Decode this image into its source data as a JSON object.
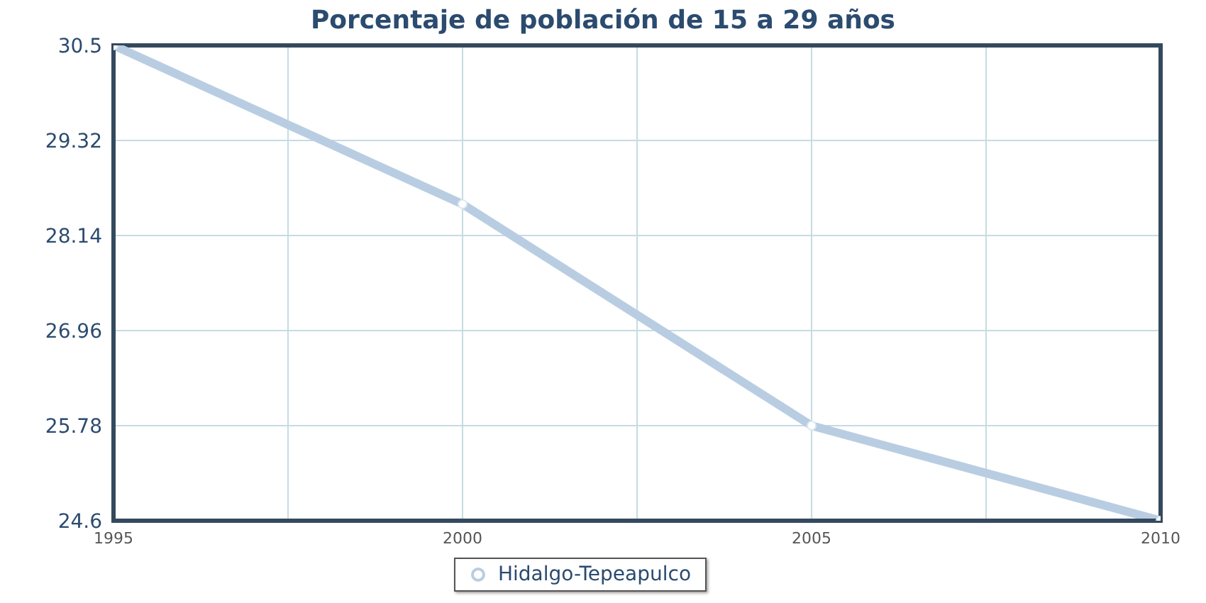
{
  "chart_data": {
    "type": "line",
    "title": "Porcentaje de población de 15 a 29 años",
    "x": [
      1995,
      2000,
      2005,
      2010
    ],
    "series": [
      {
        "name": "Hidalgo-Tepeapulco",
        "color": "#b9cde2",
        "values": [
          30.5,
          28.53,
          25.78,
          24.6
        ]
      }
    ],
    "xlim": [
      1995,
      2010
    ],
    "xticks": [
      1995,
      {
        "value": 1997.5,
        "label": null
      },
      2000,
      {
        "value": 2002.5,
        "label": null
      },
      2005,
      {
        "value": 2007.5,
        "label": null
      },
      2010
    ],
    "ylim": [
      24.6,
      30.5
    ],
    "yticks": [
      24.6,
      25.78,
      26.96,
      28.14,
      29.32,
      30.5
    ],
    "grid": true,
    "legend": "bottom",
    "marker": "circle",
    "line_style": "solid"
  }
}
